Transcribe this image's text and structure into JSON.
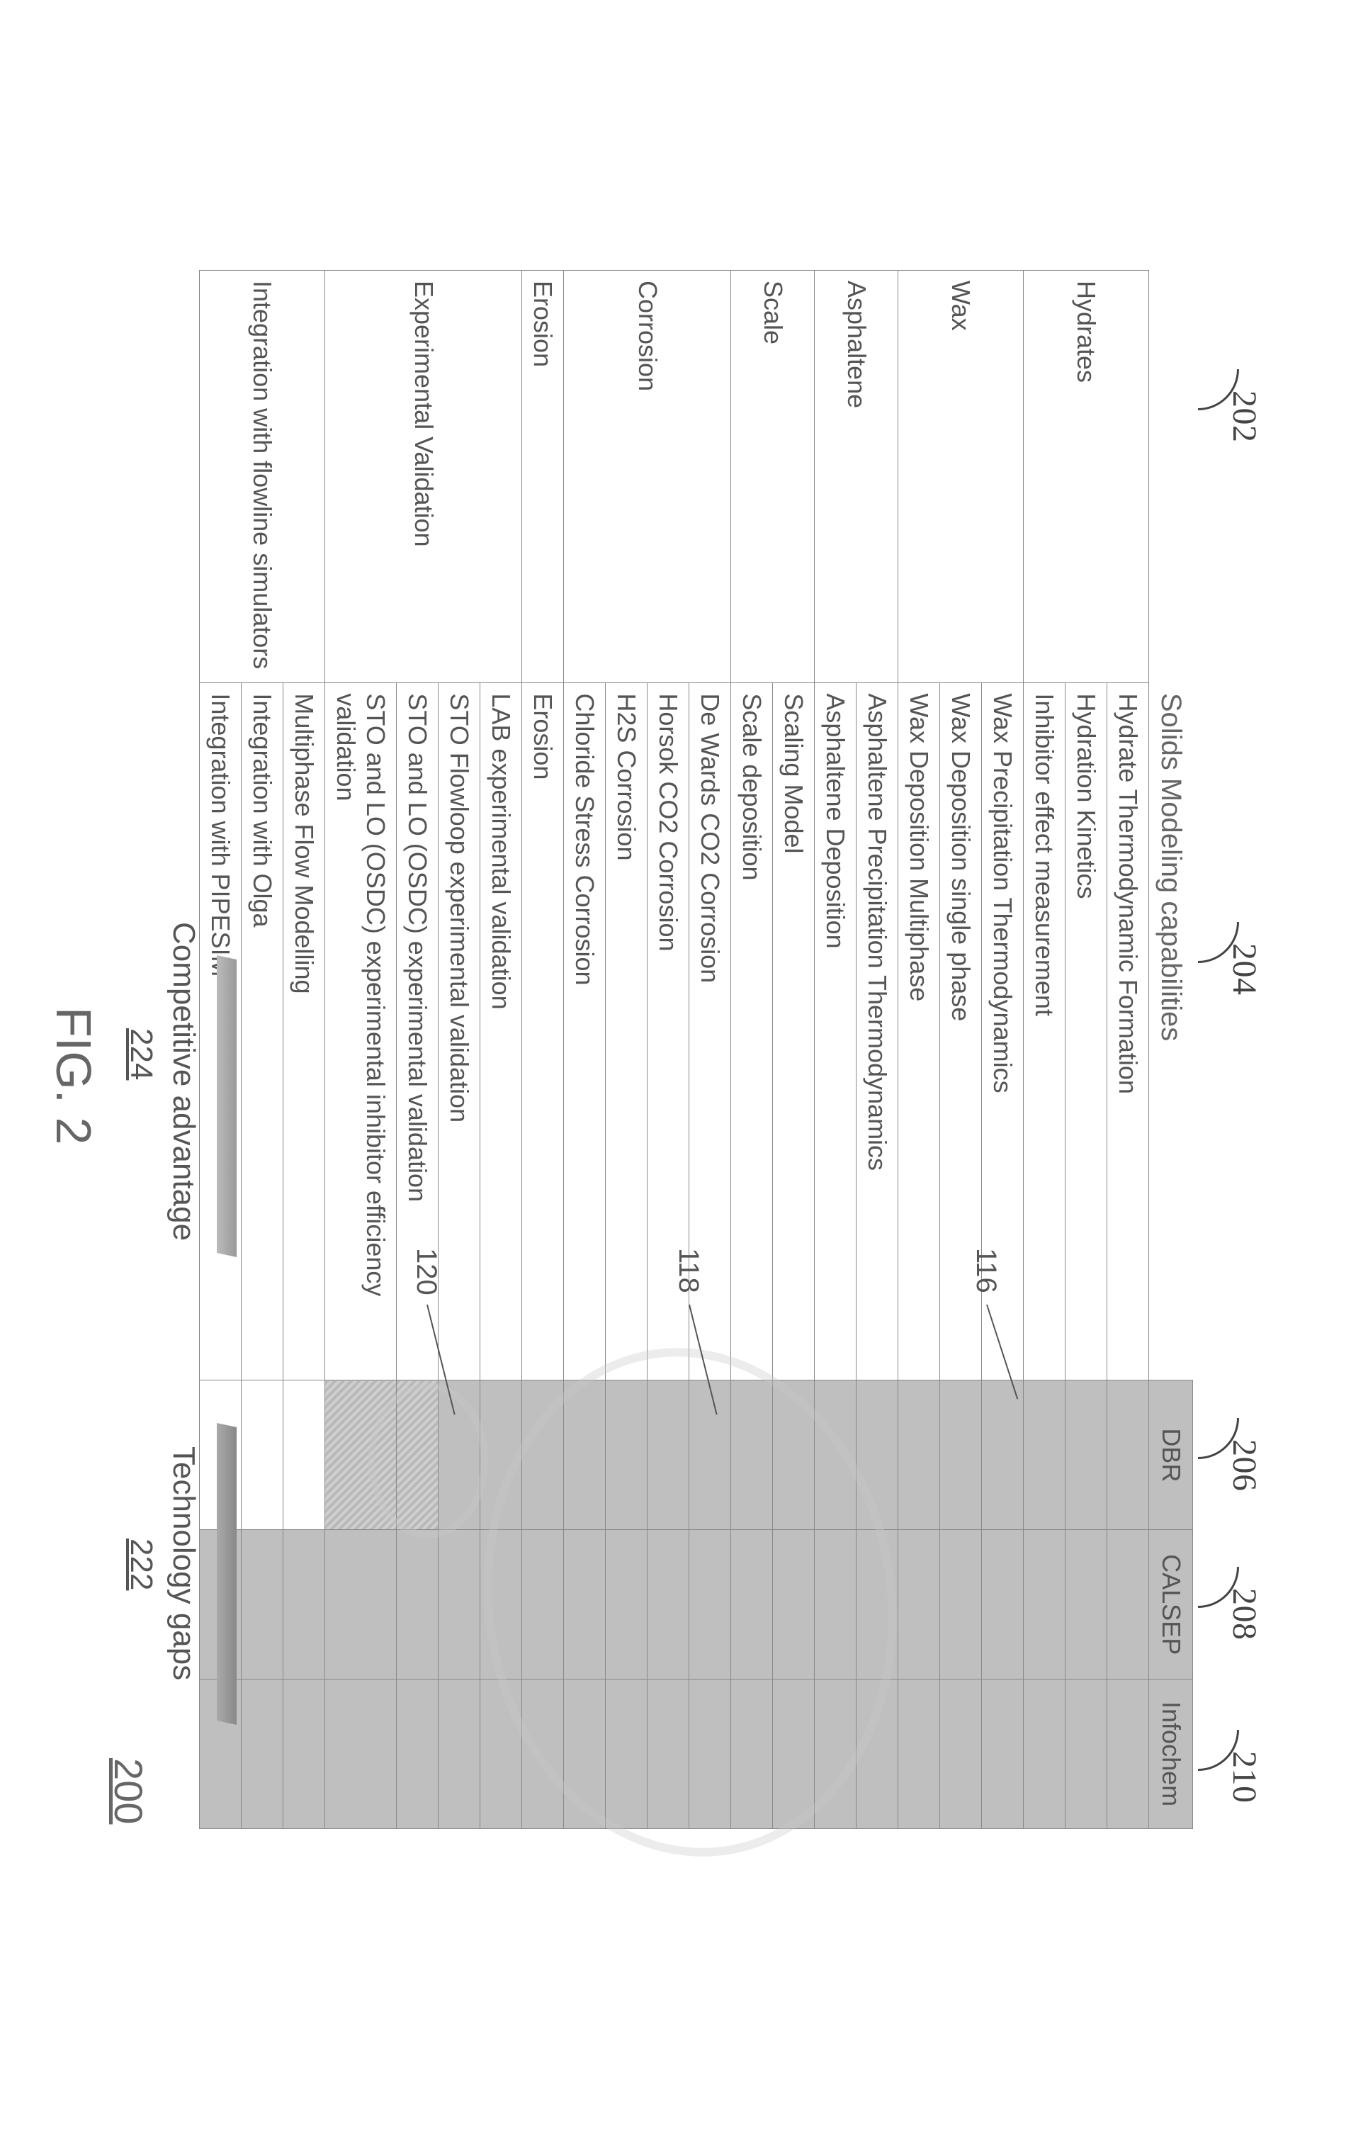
{
  "figure": {
    "label": "FIG. 2",
    "pageref": "200"
  },
  "columns": {
    "category_ref": "202",
    "capability_header": "Solids Modeling capabilities",
    "capability_ref": "204",
    "vendors": [
      {
        "name": "DBR",
        "ref": "206"
      },
      {
        "name": "CALSEP",
        "ref": "208"
      },
      {
        "name": "Infochem",
        "ref": "210"
      }
    ]
  },
  "leads": {
    "l116": "116",
    "l118": "118",
    "l120": "120"
  },
  "legend": {
    "advantage": {
      "label": "Competitive advantage",
      "ref": "224"
    },
    "gaps": {
      "label": "Technology gaps",
      "ref": "222"
    }
  },
  "rows": [
    {
      "cat": "Hydrates",
      "span": 3,
      "items": [
        {
          "cap": "Hydrate Thermodynamic Formation",
          "v": [
            "shaded",
            "shaded",
            "shaded"
          ]
        },
        {
          "cap": "Hydration Kinetics",
          "v": [
            "shaded",
            "shaded",
            "shaded"
          ]
        },
        {
          "cap": "Inhibitor effect measurement",
          "v": [
            "shaded",
            "shaded",
            "shaded"
          ]
        }
      ]
    },
    {
      "cat": "Wax",
      "span": 3,
      "items": [
        {
          "cap": "Wax Precipitation Thermodynamics",
          "v": [
            "shaded",
            "shaded",
            "shaded"
          ]
        },
        {
          "cap": "Wax Deposition single phase",
          "v": [
            "shaded",
            "shaded",
            "shaded"
          ]
        },
        {
          "cap": "Wax Deposition Multiphase",
          "v": [
            "shaded",
            "shaded",
            "shaded"
          ]
        }
      ]
    },
    {
      "cat": "Asphaltene",
      "span": 2,
      "items": [
        {
          "cap": "Asphaltene Precipitation Thermodynamics",
          "v": [
            "shaded",
            "shaded",
            "shaded"
          ]
        },
        {
          "cap": "Asphaltene Deposition",
          "v": [
            "shaded",
            "shaded",
            "shaded"
          ]
        }
      ]
    },
    {
      "cat": "Scale",
      "span": 2,
      "items": [
        {
          "cap": "Scaling Model",
          "v": [
            "shaded",
            "shaded",
            "shaded"
          ]
        },
        {
          "cap": "Scale deposition",
          "v": [
            "shaded",
            "shaded",
            "shaded"
          ]
        }
      ]
    },
    {
      "cat": "Corrosion",
      "span": 4,
      "items": [
        {
          "cap": "De Wards CO2 Corrosion",
          "v": [
            "shaded",
            "shaded",
            "shaded"
          ]
        },
        {
          "cap": "Horsok CO2 Corrosion",
          "v": [
            "shaded",
            "shaded",
            "shaded"
          ]
        },
        {
          "cap": "H2S Corrosion",
          "v": [
            "shaded",
            "shaded",
            "shaded"
          ]
        },
        {
          "cap": "Chloride Stress Corrosion",
          "v": [
            "shaded",
            "shaded",
            "shaded"
          ]
        }
      ]
    },
    {
      "cat": "Erosion",
      "span": 1,
      "items": [
        {
          "cap": "Erosion",
          "v": [
            "shaded",
            "shaded",
            "shaded"
          ]
        }
      ]
    },
    {
      "cat": "Experimental Validation",
      "span": 4,
      "items": [
        {
          "cap": "LAB experimental validation",
          "v": [
            "shaded",
            "shaded",
            "shaded"
          ]
        },
        {
          "cap": "STO Flowloop experimental validation",
          "v": [
            "shaded",
            "shaded",
            "shaded"
          ]
        },
        {
          "cap": "STO and LO (OSDC) experimental validation",
          "v": [
            "hatched",
            "shaded",
            "shaded"
          ]
        },
        {
          "cap": "STO and LO (OSDC) experimental inhibitor efficiency validation",
          "v": [
            "hatched",
            "shaded",
            "shaded"
          ]
        }
      ]
    },
    {
      "cat": "Integration with flowline simulators",
      "span": 3,
      "items": [
        {
          "cap": "Multiphase Flow Modelling",
          "v": [
            "unshaded",
            "shaded",
            "shaded"
          ]
        },
        {
          "cap": "Integration with Olga",
          "v": [
            "unshaded",
            "shaded",
            "shaded"
          ]
        },
        {
          "cap": "Integration with PIPESIM",
          "v": [
            "unshaded",
            "shaded",
            "shaded"
          ]
        }
      ]
    }
  ]
}
